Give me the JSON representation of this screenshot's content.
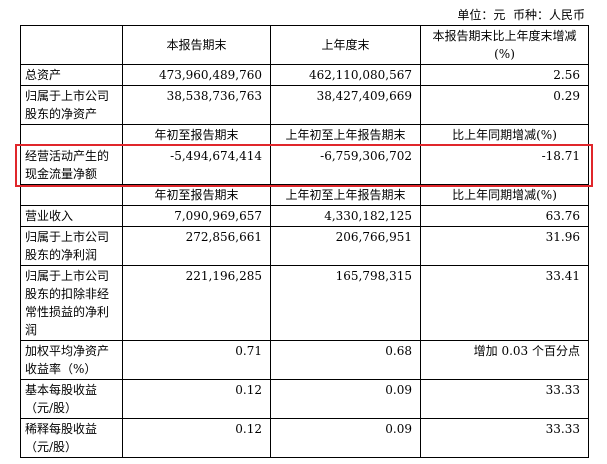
{
  "header": {
    "unit": "单位：元  币种：人民币"
  },
  "table": {
    "rows": [
      [
        "本报告期末",
        "上年度末",
        "本报告期末比上年度末增减(%)"
      ],
      [
        "总资产",
        "473,960,489,760",
        "462,110,080,567",
        "2.56"
      ],
      [
        "归属于上市公司股东的净资产",
        "38,538,736,763",
        "38,427,409,669",
        "0.29"
      ],
      [
        "年初至报告期末",
        "上年初至上年报告期末",
        "比上年同期增减(%)"
      ],
      [
        "经营活动产生的现金流量净额",
        "-5,494,674,414",
        "-6,759,306,702",
        "-18.71"
      ],
      [
        "年初至报告期末",
        "上年初至上年报告期末",
        "比上年同期增减(%)"
      ],
      [
        "营业收入",
        "7,090,969,657",
        "4,330,182,125",
        "63.76"
      ],
      [
        "归属于上市公司股东的净利润",
        "272,856,661",
        "206,766,951",
        "31.96"
      ],
      [
        "归属于上市公司股东的扣除非经常性损益的净利润",
        "221,196,285",
        "165,798,315",
        "33.41"
      ],
      [
        "加权平均净资产收益率（%）",
        "0.71",
        "0.68",
        "增加 0.03 个百分点"
      ],
      [
        "基本每股收益（元/股）",
        "0.12",
        "0.09",
        "33.33"
      ],
      [
        "稀释每股收益（元/股）",
        "0.12",
        "0.09",
        "33.33"
      ]
    ]
  }
}
